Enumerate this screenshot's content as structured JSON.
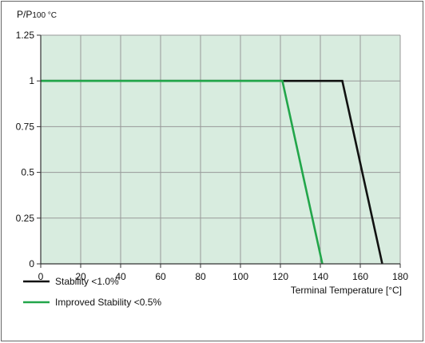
{
  "chart_data": {
    "type": "line",
    "title": "",
    "xlabel": "Terminal Temperature [°C]",
    "ylabel_main": "P/P",
    "ylabel_sub": "100 °C",
    "xlim": [
      0,
      180
    ],
    "ylim": [
      0,
      1.25
    ],
    "xticks": [
      0,
      20,
      40,
      60,
      80,
      100,
      120,
      140,
      160,
      180
    ],
    "yticks": [
      0,
      0.25,
      0.5,
      0.75,
      1,
      1.25
    ],
    "grid": true,
    "plot_background": "#d8ecdf",
    "grid_color": "#999999",
    "legend_position": "bottom-left",
    "series": [
      {
        "name": "Stability <1.0%",
        "color": "#111111",
        "points": [
          [
            0,
            1
          ],
          [
            151,
            1
          ],
          [
            171,
            0
          ]
        ]
      },
      {
        "name": "Improved Stability <0.5%",
        "color": "#22a64a",
        "points": [
          [
            0,
            1
          ],
          [
            121,
            1
          ],
          [
            141,
            0
          ]
        ]
      }
    ]
  }
}
